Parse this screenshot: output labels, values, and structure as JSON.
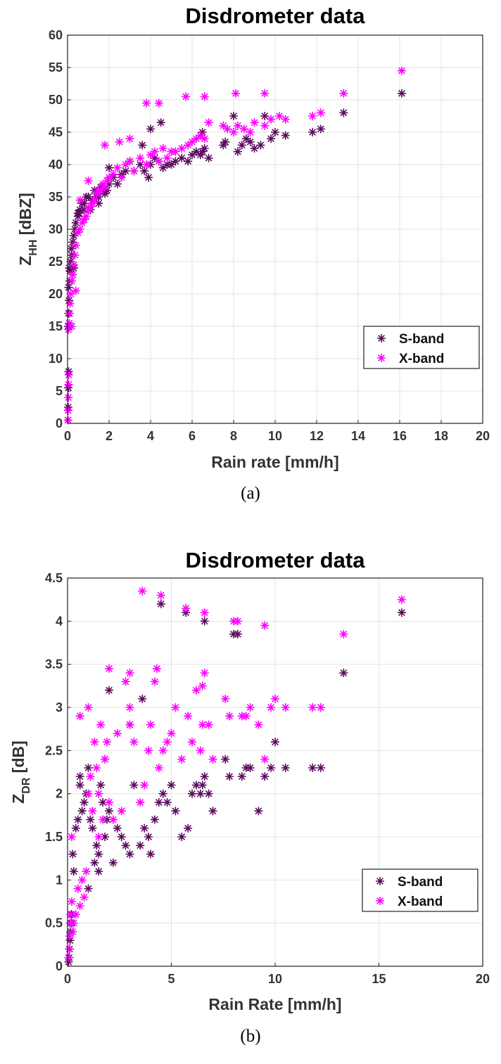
{
  "colors": {
    "s_band": "#5b0a5e",
    "x_band": "#ff00ff"
  },
  "marker": "asterisk",
  "chart_data": [
    {
      "type": "scatter",
      "title": "Disdrometer data",
      "xlabel": "Rain rate [mm/h]",
      "ylabel": "Z_HH [dBZ]",
      "ylabel_main": "Z",
      "ylabel_sub": "HH",
      "ylabel_unit": " [dBZ]",
      "caption": "(a)",
      "xlim": [
        0,
        20
      ],
      "ylim": [
        0,
        60
      ],
      "xticks": [
        0,
        2,
        4,
        6,
        8,
        10,
        12,
        14,
        16,
        18,
        20
      ],
      "yticks": [
        0,
        5,
        10,
        15,
        20,
        25,
        30,
        35,
        40,
        45,
        50,
        55,
        60
      ],
      "grid": true,
      "legend_position": "lower-right",
      "series": [
        {
          "name": "S-band",
          "color": "#5b0a5e",
          "x": [
            0.02,
            0.03,
            0.04,
            0.05,
            0.03,
            0.05,
            0.07,
            0.05,
            0.1,
            0.08,
            0.12,
            0.15,
            0.2,
            0.18,
            0.25,
            0.3,
            0.35,
            0.4,
            0.5,
            0.55,
            0.6,
            0.7,
            0.8,
            0.9,
            1.0,
            1.1,
            1.2,
            1.3,
            1.4,
            1.5,
            1.6,
            1.7,
            1.8,
            1.9,
            2.0,
            2.2,
            2.4,
            2.6,
            2.8,
            3.0,
            3.2,
            3.5,
            3.7,
            3.9,
            4.0,
            4.2,
            4.4,
            4.6,
            4.8,
            5.0,
            5.2,
            5.5,
            5.8,
            6.0,
            6.2,
            6.4,
            6.5,
            6.6,
            6.8,
            7.5,
            7.6,
            8.0,
            8.2,
            8.4,
            8.6,
            8.8,
            9.0,
            9.3,
            9.5,
            9.8,
            10.0,
            10.5,
            11.8,
            12.2,
            13.3,
            16.1,
            0.3,
            0.5,
            0.8,
            1.5,
            2.0,
            3.0,
            3.6,
            4.0,
            4.5,
            6.5
          ],
          "y": [
            0.5,
            2.5,
            5.5,
            8.0,
            15.0,
            17.0,
            19.0,
            21.0,
            22.0,
            24.0,
            23.5,
            25.0,
            26.0,
            27.0,
            28.0,
            29.0,
            30.0,
            31.0,
            32.0,
            32.5,
            33.0,
            34.0,
            34.0,
            35.0,
            35.0,
            33.0,
            34.5,
            36.0,
            35.0,
            34.0,
            36.5,
            36.0,
            35.5,
            36.0,
            37.0,
            38.0,
            37.0,
            38.5,
            39.0,
            40.5,
            39.0,
            40.0,
            39.0,
            38.0,
            40.0,
            41.0,
            40.5,
            39.5,
            40.0,
            40.0,
            40.5,
            41.0,
            40.5,
            41.5,
            42.0,
            41.5,
            42.0,
            42.5,
            41.0,
            43.0,
            43.5,
            47.5,
            42.0,
            43.0,
            44.0,
            43.5,
            42.5,
            43.0,
            47.5,
            44.0,
            45.0,
            44.5,
            45.0,
            45.5,
            48.0,
            51.0,
            24.0,
            32.5,
            33.0,
            35.0,
            39.5,
            40.5,
            43.0,
            45.5,
            46.5,
            45.0
          ]
        },
        {
          "name": "X-band",
          "color": "#ff00ff",
          "x": [
            0.02,
            0.03,
            0.04,
            0.05,
            0.06,
            0.04,
            0.08,
            0.1,
            0.12,
            0.15,
            0.2,
            0.25,
            0.3,
            0.35,
            0.4,
            0.5,
            0.6,
            0.7,
            0.8,
            0.9,
            1.0,
            1.1,
            1.2,
            1.3,
            1.4,
            1.5,
            1.6,
            1.7,
            1.8,
            1.9,
            2.0,
            2.2,
            2.4,
            2.6,
            2.8,
            3.0,
            3.2,
            3.5,
            3.8,
            4.0,
            4.2,
            4.4,
            4.6,
            4.8,
            5.0,
            5.2,
            5.5,
            5.8,
            6.0,
            6.2,
            6.4,
            6.6,
            6.8,
            7.5,
            7.7,
            8.0,
            8.2,
            8.5,
            8.8,
            9.0,
            9.5,
            9.8,
            10.2,
            10.5,
            11.8,
            12.2,
            13.3,
            16.1,
            0.2,
            0.4,
            0.6,
            1.0,
            1.8,
            2.5,
            3.0,
            3.8,
            4.4,
            5.7,
            6.6,
            8.1,
            9.5
          ],
          "y": [
            0.5,
            2.0,
            4.0,
            6.0,
            7.5,
            14.5,
            15.5,
            17.0,
            18.5,
            20.0,
            22.0,
            23.0,
            24.5,
            26.0,
            27.5,
            29.5,
            30.0,
            31.0,
            31.5,
            32.0,
            33.0,
            33.5,
            34.0,
            34.5,
            35.5,
            36.0,
            36.0,
            37.0,
            36.5,
            37.5,
            38.0,
            38.5,
            39.5,
            38.0,
            40.0,
            40.5,
            39.0,
            41.0,
            40.0,
            41.5,
            42.0,
            40.5,
            42.5,
            41.0,
            42.0,
            42.0,
            42.5,
            43.0,
            43.5,
            44.0,
            44.5,
            44.0,
            46.5,
            46.0,
            45.5,
            45.0,
            46.0,
            45.5,
            45.0,
            46.5,
            46.0,
            47.0,
            47.5,
            47.0,
            47.5,
            48.0,
            51.0,
            54.5,
            15.0,
            20.5,
            34.5,
            37.5,
            43.0,
            43.5,
            44.0,
            49.5,
            49.5,
            50.5,
            50.5,
            51.0,
            51.0
          ]
        }
      ]
    },
    {
      "type": "scatter",
      "title": "Disdrometer data",
      "xlabel": "Rain Rate [mm/h]",
      "ylabel": "Z_DR [dB]",
      "ylabel_main": "Z",
      "ylabel_sub": "DR",
      "ylabel_unit": " [dB]",
      "caption": "(b)",
      "xlim": [
        0,
        20
      ],
      "ylim": [
        0,
        4.5
      ],
      "xticks": [
        0,
        5,
        10,
        15,
        20
      ],
      "yticks": [
        0,
        0.5,
        1,
        1.5,
        2,
        2.5,
        3,
        3.5,
        4,
        4.5
      ],
      "grid": true,
      "legend_position": "lower-right",
      "series": [
        {
          "name": "S-band",
          "color": "#5b0a5e",
          "x": [
            0.05,
            0.08,
            0.1,
            0.12,
            0.15,
            0.2,
            0.25,
            0.3,
            0.4,
            0.5,
            0.6,
            0.7,
            0.8,
            0.9,
            1.0,
            1.1,
            1.2,
            1.3,
            1.4,
            1.5,
            1.6,
            1.7,
            1.8,
            1.9,
            2.0,
            2.2,
            2.4,
            2.6,
            2.8,
            3.0,
            3.2,
            3.5,
            3.7,
            3.9,
            4.0,
            4.2,
            4.4,
            4.6,
            4.8,
            5.0,
            5.2,
            5.5,
            5.8,
            6.0,
            6.2,
            6.4,
            6.5,
            6.6,
            6.8,
            7.0,
            7.6,
            7.8,
            8.0,
            8.2,
            8.4,
            8.6,
            8.8,
            9.2,
            9.5,
            9.8,
            10.0,
            10.5,
            11.8,
            12.2,
            13.3,
            16.1,
            0.2,
            0.6,
            1.0,
            1.5,
            2.0,
            3.0,
            3.6,
            4.5,
            5.7,
            6.6
          ],
          "y": [
            0.05,
            0.1,
            0.2,
            0.3,
            0.4,
            0.5,
            1.3,
            1.1,
            1.6,
            1.7,
            2.1,
            1.8,
            1.9,
            2.0,
            2.3,
            1.7,
            1.6,
            1.2,
            1.4,
            1.3,
            2.1,
            1.9,
            1.5,
            1.7,
            1.8,
            1.2,
            1.6,
            1.5,
            1.4,
            1.3,
            2.1,
            1.4,
            1.6,
            1.5,
            1.3,
            1.7,
            1.9,
            2.0,
            1.9,
            2.1,
            1.8,
            1.5,
            1.6,
            2.0,
            2.1,
            2.0,
            2.1,
            2.2,
            2.0,
            1.8,
            2.4,
            2.2,
            3.85,
            3.85,
            2.2,
            2.3,
            2.3,
            1.8,
            2.2,
            2.3,
            2.6,
            2.3,
            2.3,
            2.3,
            3.4,
            4.1,
            0.6,
            2.2,
            0.9,
            1.1,
            3.2,
            2.8,
            3.1,
            4.2,
            4.1,
            4.0
          ]
        },
        {
          "name": "X-band",
          "color": "#ff00ff",
          "x": [
            0.05,
            0.08,
            0.1,
            0.12,
            0.15,
            0.2,
            0.25,
            0.3,
            0.4,
            0.5,
            0.6,
            0.7,
            0.8,
            0.9,
            1.0,
            1.1,
            1.2,
            1.3,
            1.4,
            1.5,
            1.6,
            1.7,
            1.8,
            1.9,
            2.0,
            2.2,
            2.4,
            2.6,
            2.8,
            3.0,
            3.2,
            3.5,
            3.7,
            3.9,
            4.0,
            4.2,
            4.4,
            4.6,
            4.8,
            5.0,
            5.2,
            5.5,
            5.8,
            6.0,
            6.2,
            6.4,
            6.5,
            6.6,
            6.8,
            7.0,
            7.6,
            7.8,
            8.0,
            8.2,
            8.4,
            8.6,
            8.8,
            9.2,
            9.5,
            9.8,
            10.0,
            10.5,
            11.8,
            12.2,
            13.3,
            16.1,
            0.2,
            0.6,
            1.0,
            1.5,
            2.0,
            3.0,
            3.6,
            4.5,
            5.7,
            6.6,
            1.8,
            3.0,
            4.3,
            6.5,
            9.5
          ],
          "y": [
            0.1,
            0.2,
            0.35,
            0.5,
            0.6,
            0.75,
            0.4,
            0.5,
            0.6,
            0.9,
            0.7,
            1.0,
            0.8,
            1.1,
            2.0,
            2.2,
            1.8,
            2.6,
            2.3,
            1.5,
            2.8,
            1.7,
            2.4,
            2.6,
            1.9,
            1.7,
            2.7,
            1.8,
            3.3,
            3.0,
            2.6,
            1.9,
            2.1,
            2.5,
            2.8,
            3.3,
            2.3,
            2.5,
            2.6,
            2.7,
            3.0,
            2.4,
            2.9,
            2.6,
            3.2,
            2.5,
            2.8,
            3.4,
            2.8,
            2.4,
            3.1,
            2.9,
            4.0,
            4.0,
            2.9,
            2.9,
            3.0,
            2.8,
            2.4,
            3.0,
            3.1,
            3.0,
            3.0,
            3.0,
            3.85,
            4.25,
            1.5,
            2.9,
            3.0,
            2.0,
            3.45,
            3.4,
            4.35,
            4.3,
            4.15,
            4.1,
            2.4,
            2.8,
            3.45,
            3.25,
            3.95
          ]
        }
      ]
    }
  ]
}
